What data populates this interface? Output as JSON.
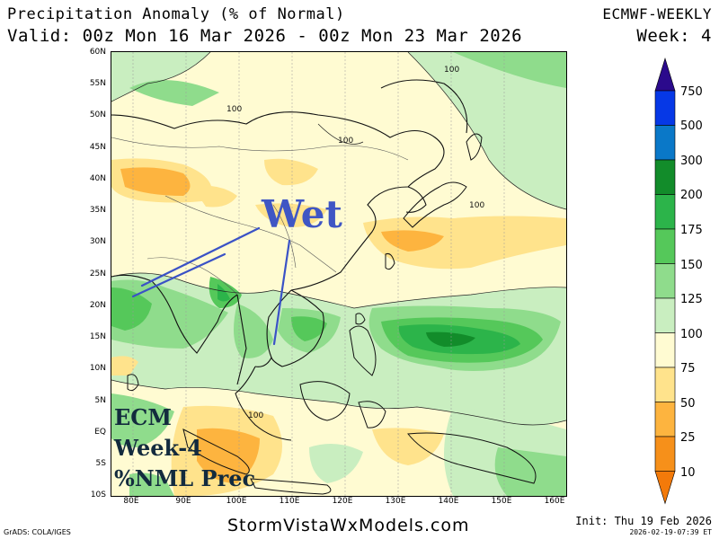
{
  "header": {
    "title": "Precipitation Anomaly (% of Normal)",
    "valid": "Valid: 00z Mon 16 Mar 2026 - 00z Mon 23 Mar 2026",
    "model": "ECMWF-WEEKLY",
    "week": "Week: 4"
  },
  "axes": {
    "lat_labels": [
      "60N",
      "55N",
      "50N",
      "45N",
      "40N",
      "35N",
      "30N",
      "25N",
      "20N",
      "15N",
      "10N",
      "5N",
      "EQ",
      "5S",
      "10S"
    ],
    "lon_labels": [
      "80E",
      "90E",
      "100E",
      "110E",
      "120E",
      "130E",
      "140E",
      "150E",
      "160E"
    ]
  },
  "colorbar": {
    "labels": [
      "750",
      "500",
      "300",
      "200",
      "175",
      "150",
      "125",
      "100",
      "75",
      "50",
      "25",
      "10"
    ],
    "colors": [
      "#2b0a8c",
      "#0638e6",
      "#0a78c8",
      "#128c2a",
      "#2cb44a",
      "#55c85a",
      "#8fdc8c",
      "#c9eec0",
      "#fffbd2",
      "#ffe38c",
      "#fdb43f",
      "#f6901a",
      "#f37a0a"
    ]
  },
  "contour_labels": [
    "100",
    "100",
    "100",
    "100",
    "100"
  ],
  "annotations": {
    "wet": "Wet",
    "ecm_lines": [
      "ECM",
      "Week-4",
      "%NML Prec"
    ]
  },
  "footer": {
    "site": "StormVistaWxModels.com",
    "grads": "GrADS: COLA/IGES",
    "init": "Init: Thu 19 Feb 2026",
    "stamp": "2026-02-19-07:39 ET"
  }
}
